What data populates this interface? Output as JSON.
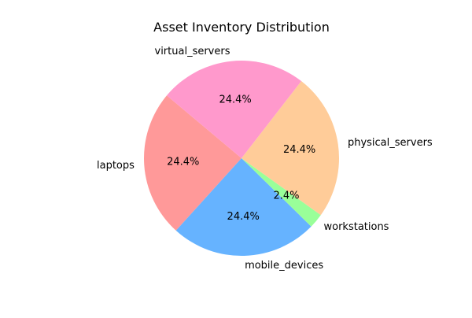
{
  "chart_data": {
    "type": "pie",
    "title": "Asset Inventory Distribution",
    "categories": [
      "laptops",
      "mobile_devices",
      "workstations",
      "physical_servers",
      "virtual_servers"
    ],
    "values": [
      10,
      10,
      1,
      10,
      10
    ],
    "percent_labels": [
      "24.4%",
      "24.4%",
      "2.4%",
      "24.4%",
      "24.4%"
    ],
    "colors": [
      "#ff9999",
      "#66b3ff",
      "#99ff99",
      "#ffcc99",
      "#ff99cc"
    ],
    "start_angle_deg": 140,
    "direction": "counterclockwise",
    "legend": "none"
  }
}
